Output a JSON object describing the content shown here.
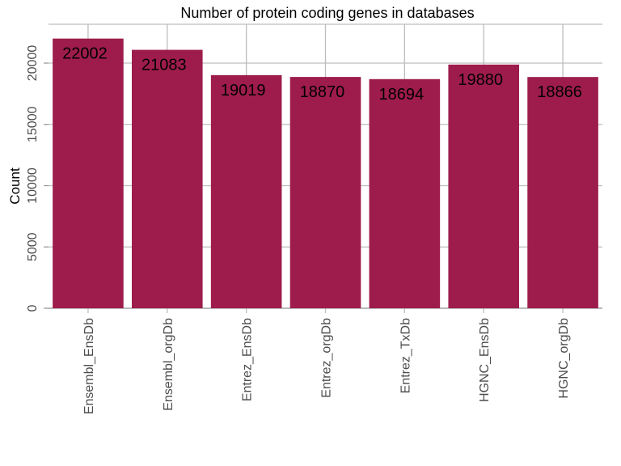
{
  "chart_data": {
    "type": "bar",
    "title": "Number of protein coding genes in databases",
    "xlabel": "",
    "ylabel": "Count",
    "categories": [
      "Ensembl_EnsDb",
      "Ensembl_orgDb",
      "Entrez_EnsDb",
      "Entrez_orgDb",
      "Entrez_TxDb",
      "HGNC_EnsDb",
      "HGNC_orgDb"
    ],
    "values": [
      22002,
      21083,
      19019,
      18870,
      18694,
      19880,
      18866
    ],
    "data_labels": [
      "22002",
      "21083",
      "19019",
      "18870",
      "18694",
      "19880",
      "18866"
    ],
    "yticks": [
      0,
      5000,
      10000,
      15000,
      20000
    ],
    "ytick_labels": [
      "0",
      "5000",
      "10000",
      "15000",
      "20000"
    ],
    "ylim": [
      0,
      22000
    ],
    "grid": true,
    "legend": "none",
    "bar_color": "#9E1C4B"
  }
}
